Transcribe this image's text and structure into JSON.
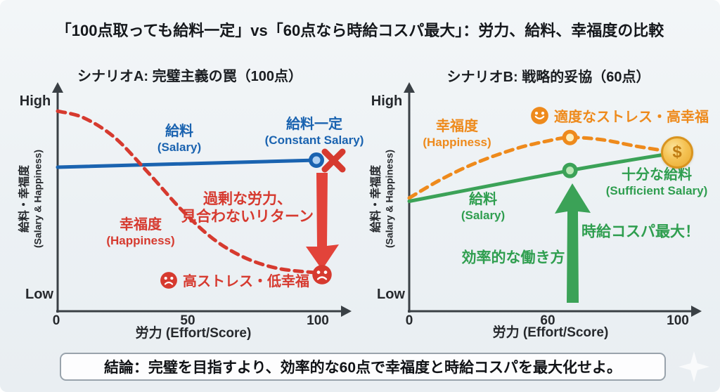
{
  "page_title": "「100点取っても給料一定」vs「60点なら時給コスパ最大」：労力、給料、幸福度の比較",
  "conclusion": "結論：完璧を目指すより、効率的な60点で幸福度と時給コスパを最大化せよ。",
  "icons": {
    "coin_symbol": "$"
  },
  "colors": {
    "blue": "#1a63b0",
    "red": "#d63a2f",
    "orange": "#ee8a1c",
    "green": "#2f9e4f",
    "gold": "#eab33c",
    "axis": "#3a4045",
    "background": "#edf1f4"
  },
  "chart_data": [
    {
      "type": "line",
      "title": "シナリオA: 完璧主義の罠（100点）",
      "xlabel": "労力 (Effort/Score)",
      "ylabel_ja": "給料・幸福度",
      "ylabel_en": "(Salary & Happiness)",
      "y_axis_top": "High",
      "y_axis_bottom": "Low",
      "x_range": [
        0,
        100
      ],
      "y_range": [
        0,
        1
      ],
      "x_ticks": [
        "0",
        "50",
        "100"
      ],
      "grid": false,
      "series": [
        {
          "name": "給料 (Salary)",
          "label_ja": "給料",
          "label_en": "(Salary)",
          "style": "solid",
          "color": "#1a63b0",
          "width": 5,
          "marker_fill": "#aed0f2",
          "points": [
            [
              0,
              0.655
            ],
            [
              100,
              0.687
            ]
          ],
          "markers": [
            {
              "x": 100,
              "y": 0.687
            }
          ]
        },
        {
          "name": "幸福度 (Happiness)",
          "label_ja": "幸福度",
          "label_en": "(Happiness)",
          "style": "dashed",
          "color": "#d63a2f",
          "width": 5,
          "points": [
            [
              0,
              0.91
            ],
            [
              10,
              0.88
            ],
            [
              22,
              0.79
            ],
            [
              35,
              0.63
            ],
            [
              48,
              0.46
            ],
            [
              60,
              0.33
            ],
            [
              72,
              0.245
            ],
            [
              85,
              0.195
            ],
            [
              100,
              0.175
            ]
          ]
        }
      ],
      "annotations": [
        {
          "text": "給料一定",
          "sub": "(Constant Salary)",
          "color": "#1a63b0"
        },
        {
          "line1": "過剰な労力、",
          "line2": "見合わないリターン",
          "color": "#d63a2f"
        },
        {
          "text": "高ストレス・低幸福",
          "color": "#d63a2f"
        }
      ]
    },
    {
      "type": "line",
      "title": "シナリオB: 戦略的妥協（60点）",
      "xlabel": "労力 (Effort/Score)",
      "ylabel_ja": "給料・幸福度",
      "ylabel_en": "(Salary & Happiness)",
      "y_axis_top": "High",
      "y_axis_bottom": "Low",
      "x_range": [
        0,
        100
      ],
      "y_range": [
        0,
        1
      ],
      "x_ticks": [
        "0",
        "60",
        "100"
      ],
      "grid": false,
      "series": [
        {
          "name": "幸福度 (Happiness)",
          "label_ja": "幸福度",
          "label_en": "(Happiness)",
          "style": "dashed",
          "color": "#ee8a1c",
          "width": 5,
          "marker_fill": "#fdeebc",
          "points": [
            [
              0,
              0.515
            ],
            [
              12,
              0.6
            ],
            [
              25,
              0.675
            ],
            [
              40,
              0.74
            ],
            [
              52,
              0.775
            ],
            [
              60,
              0.79
            ],
            [
              72,
              0.78
            ],
            [
              85,
              0.75
            ],
            [
              98,
              0.725
            ]
          ],
          "markers": [
            {
              "x": 60,
              "y": 0.79
            }
          ]
        },
        {
          "name": "給料 (Salary)",
          "label_ja": "給料",
          "label_en": "(Salary)",
          "style": "solid",
          "color": "#3ba257",
          "width": 5,
          "marker_fill": "#b9e6b4",
          "points": [
            [
              0,
              0.5
            ],
            [
              60,
              0.64
            ],
            [
              99,
              0.72
            ]
          ],
          "markers": [
            {
              "x": 60,
              "y": 0.64
            }
          ]
        }
      ],
      "annotations": [
        {
          "text": "適度なストレス・高幸福",
          "color": "#ee8a1c"
        },
        {
          "text": "十分な給料",
          "sub": "(Sufficient Salary)",
          "color": "#2f9e4f"
        },
        {
          "text": "時給コスパ最大！",
          "color": "#2f9e4f"
        },
        {
          "text": "効率的な働き方",
          "color": "#2f9e4f"
        }
      ]
    }
  ]
}
